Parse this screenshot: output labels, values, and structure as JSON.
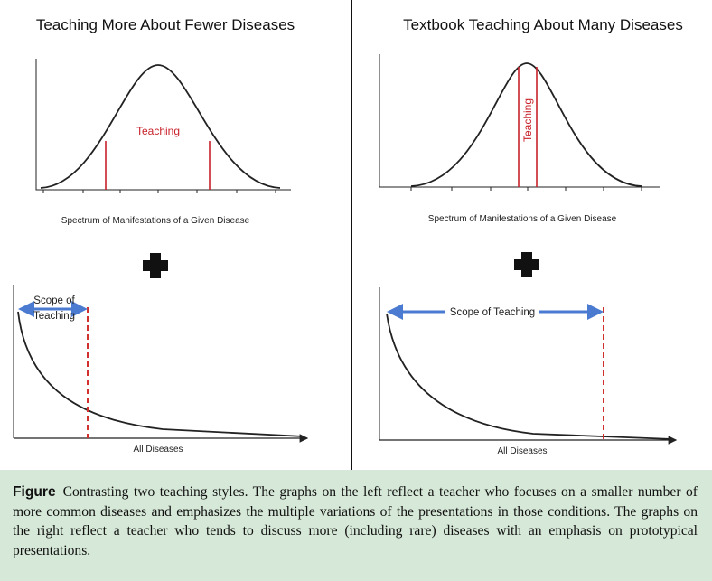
{
  "left": {
    "title": "Teaching More About Fewer Diseases",
    "curve_label": "Teaching",
    "axis_label": "Spectrum of Manifestations of a Given Disease",
    "scope_label": [
      "Scope of",
      "Teaching"
    ],
    "bottom_axis_label": "All Diseases"
  },
  "right": {
    "title": "Textbook Teaching About Many Diseases",
    "curve_label": "Teaching",
    "axis_label": "Spectrum of Manifestations of a Given Disease",
    "scope_label": "Scope of Teaching",
    "bottom_axis_label": "All Diseases"
  },
  "caption": {
    "label": "Figure",
    "text": "Contrasting two teaching styles. The graphs on the left reflect a teacher who focuses on a smaller number of more common diseases and emphasizes the multiple variations of the presentations in those conditions. The graphs on the right reflect a teacher who tends to discuss more (including rare) diseases with an emphasis on prototypical presentations."
  }
}
